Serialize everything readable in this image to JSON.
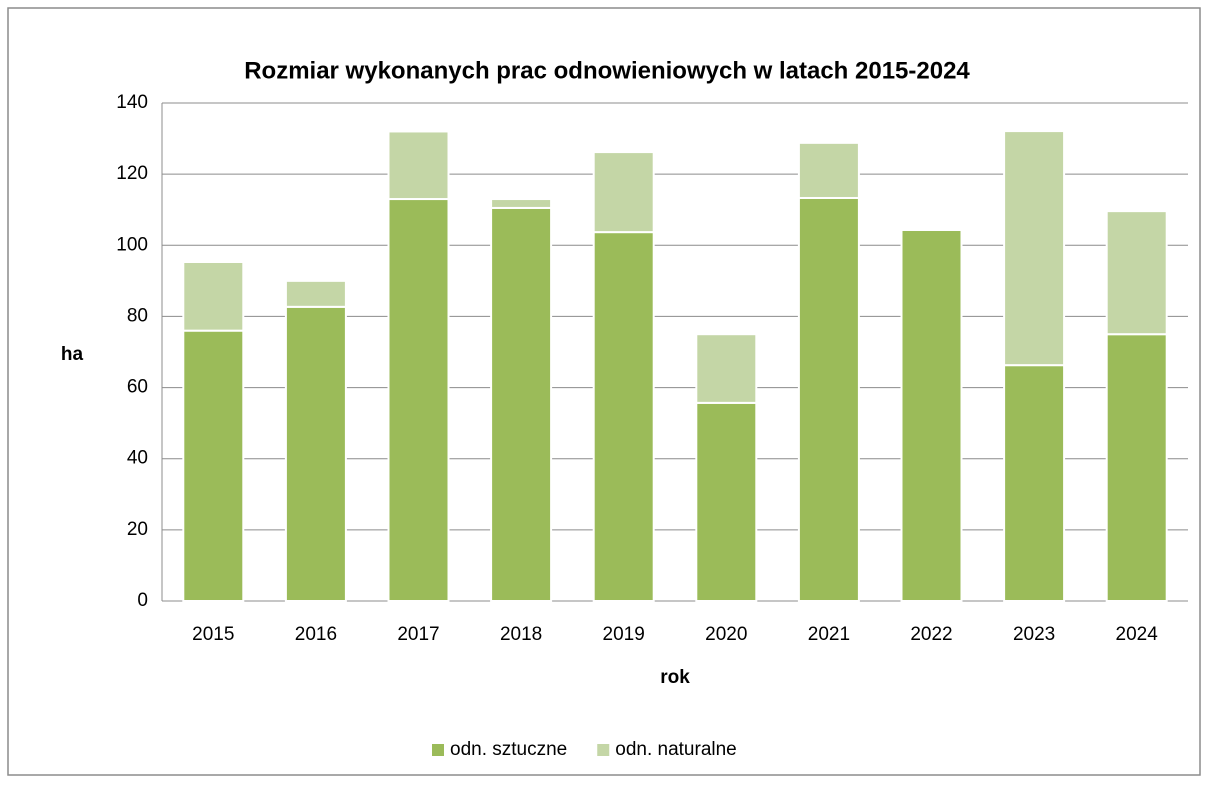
{
  "chart_data": {
    "type": "bar",
    "stacked": true,
    "title": "Rozmiar wykonanych prac odnowieniowych w latach 2015-2024",
    "x_label": "rok",
    "y_label": "ha",
    "categories": [
      "2015",
      "2016",
      "2017",
      "2018",
      "2019",
      "2020",
      "2021",
      "2022",
      "2023",
      "2024"
    ],
    "series": [
      {
        "name": "odn. sztuczne",
        "color": "#9bbb59",
        "values": [
          76,
          82.7,
          113,
          110.5,
          103.7,
          55.7,
          113.3,
          104.3,
          66.3,
          75
        ]
      },
      {
        "name": "odn. naturalne",
        "color": "#c4d6a6",
        "values": [
          19.3,
          7.3,
          19,
          2.5,
          22.5,
          19.3,
          15.5,
          0,
          65.8,
          34.6
        ]
      }
    ],
    "ylim": [
      0,
      140
    ],
    "yticks": [
      0,
      20,
      40,
      60,
      80,
      100,
      120,
      140
    ],
    "grid": true,
    "legend": "bottom"
  }
}
